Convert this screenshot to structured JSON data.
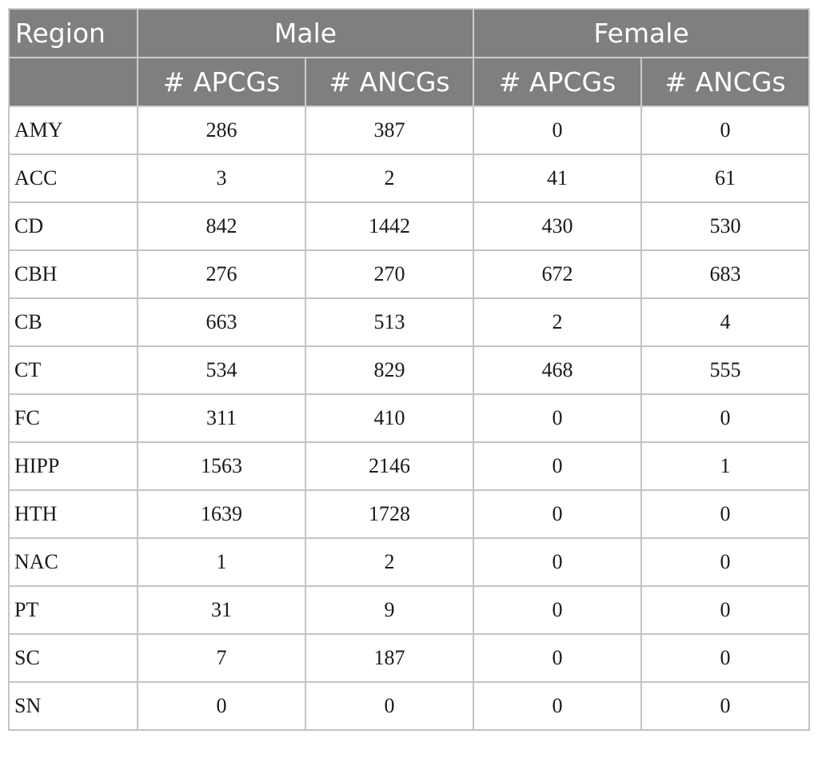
{
  "table": {
    "header": {
      "region": "Region",
      "groups": [
        "Male",
        "Female"
      ],
      "subheaders": [
        "# APCGs",
        "# ANCGs",
        "# APCGs",
        "# ANCGs"
      ]
    },
    "rows": [
      {
        "region": "AMY",
        "values": [
          "286",
          "387",
          "0",
          "0"
        ]
      },
      {
        "region": "ACC",
        "values": [
          "3",
          "2",
          "41",
          "61"
        ]
      },
      {
        "region": "CD",
        "values": [
          "842",
          "1442",
          "430",
          "530"
        ]
      },
      {
        "region": "CBH",
        "values": [
          "276",
          "270",
          "672",
          "683"
        ]
      },
      {
        "region": "CB",
        "values": [
          "663",
          "513",
          "2",
          "4"
        ]
      },
      {
        "region": "CT",
        "values": [
          "534",
          "829",
          "468",
          "555"
        ]
      },
      {
        "region": "FC",
        "values": [
          "311",
          "410",
          "0",
          "0"
        ]
      },
      {
        "region": "HIPP",
        "values": [
          "1563",
          "2146",
          "0",
          "1"
        ]
      },
      {
        "region": "HTH",
        "values": [
          "1639",
          "1728",
          "0",
          "0"
        ]
      },
      {
        "region": "NAC",
        "values": [
          "1",
          "2",
          "0",
          "0"
        ]
      },
      {
        "region": "PT",
        "values": [
          "31",
          "9",
          "0",
          "0"
        ]
      },
      {
        "region": "SC",
        "values": [
          "7",
          "187",
          "0",
          "0"
        ]
      },
      {
        "region": "SN",
        "values": [
          "0",
          "0",
          "0",
          "0"
        ]
      }
    ]
  },
  "colors": {
    "header_bg": "#7f7f7f",
    "header_text": "#ffffff",
    "grid": "#c4c4c4"
  }
}
